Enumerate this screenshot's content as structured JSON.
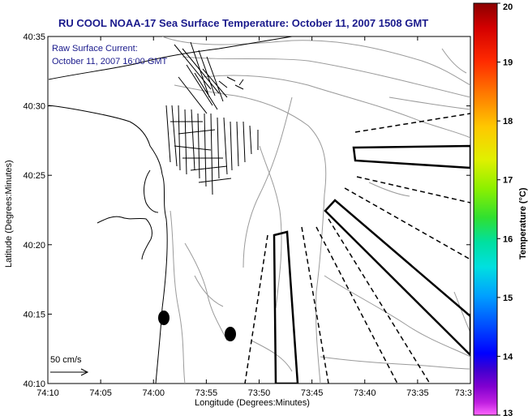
{
  "title": "RU COOL  NOAA-17  Sea Surface Temperature:  October 11, 2007 1508 GMT",
  "annotation": {
    "line1": "Raw Surface Current:",
    "line2": "October 11, 2007 16:00 GMT"
  },
  "axes": {
    "xlabel": "Longitude (Degrees:Minutes)",
    "ylabel": "Latitude (Degrees:Minutes)",
    "xticks": [
      "74:10",
      "74:05",
      "74:00",
      "73:55",
      "73:50",
      "73:45",
      "73:40",
      "73:35",
      "73:3"
    ],
    "yticks": [
      "40:35",
      "40:30",
      "40:25",
      "40:20",
      "40:15",
      "40:10"
    ]
  },
  "scale": {
    "label": "50 cm/s"
  },
  "colorbar": {
    "label": "Temperature (°C)",
    "ticks": [
      "20",
      "19",
      "18",
      "17",
      "16",
      "15",
      "14",
      "13"
    ],
    "colors": [
      "#8b0000",
      "#d40000",
      "#ff2a00",
      "#ff7a00",
      "#ffc800",
      "#e0f000",
      "#8cf000",
      "#30e030",
      "#00e0a0",
      "#00e0e0",
      "#00a0ff",
      "#0050ff",
      "#0000ff",
      "#4000d0",
      "#8000d0",
      "#c020e0",
      "#ff66ff"
    ]
  },
  "palette": {
    "title_color": "#1a1a8c",
    "coast": "#000000",
    "bathy": "#9a9a9a"
  }
}
